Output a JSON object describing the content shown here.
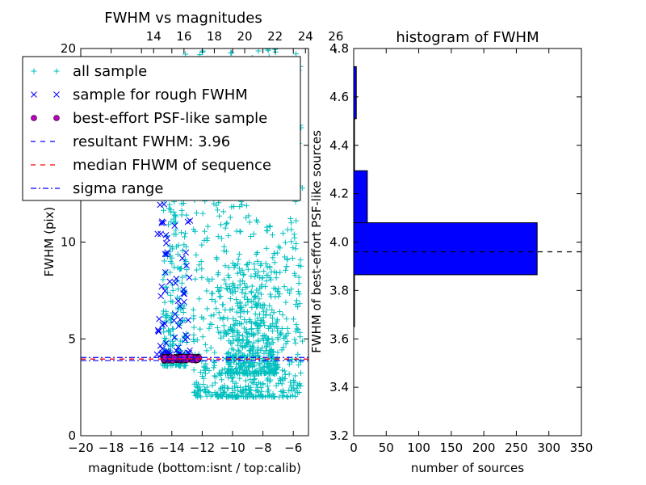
{
  "chart_data": [
    {
      "type": "scatter",
      "title": "FWHM vs magnitudes",
      "xlabel": "magnitude (bottom:isnt / top:calib)",
      "ylabel": "FWHM (pix)",
      "xlim": [
        -20,
        -5
      ],
      "ylim": [
        0,
        20
      ],
      "x_ticks": [
        "−20",
        "−18",
        "−16",
        "−14",
        "−12",
        "−10",
        "−8",
        "−6"
      ],
      "x_tick_values": [
        -20,
        -18,
        -16,
        -14,
        -12,
        -10,
        -8,
        -6
      ],
      "y_ticks": [
        "0",
        "5",
        "10",
        "15",
        "20"
      ],
      "y_tick_values": [
        0,
        5,
        10,
        15,
        20
      ],
      "top_axis": {
        "ticks": [
          "14",
          "16",
          "18",
          "20",
          "22",
          "24",
          "26"
        ],
        "tick_positions_bottom_units": [
          -15.2,
          -13.2,
          -11.2,
          -9.2,
          -7.2,
          -5.2,
          -3.2
        ]
      },
      "series": [
        {
          "name": "all sample",
          "marker": "+",
          "color": "#00bfbf",
          "clusters": [
            {
              "x": [
                -14.6,
                -13.0
              ],
              "y": [
                3.6,
                20.0
              ],
              "n": 260
            },
            {
              "x": [
                -12.6,
                -5.4
              ],
              "y": [
                2.0,
                20.0
              ],
              "n": 780
            },
            {
              "x": [
                -10.5,
                -7.0
              ],
              "y": [
                3.2,
                9.0
              ],
              "n": 380
            }
          ]
        },
        {
          "name": "sample for rough FWHM",
          "marker": "x",
          "color": "#0000ff",
          "clusters": [
            {
              "x": [
                -15.0,
                -12.8
              ],
              "y": [
                4.2,
                13.5
              ],
              "n": 70
            }
          ]
        },
        {
          "name": "best-effort PSF-like sample",
          "marker": "o",
          "color": "#bf00bf",
          "clusters": [
            {
              "x": [
                -14.6,
                -12.2
              ],
              "y": [
                3.88,
                4.08
              ],
              "n": 130
            }
          ]
        },
        {
          "name": "resultant FWHM: 3.96",
          "line": "dashed",
          "color": "#0000ff",
          "y": 3.96
        },
        {
          "name": "median FHWM of sequence",
          "line": "dashed",
          "color": "#ff0000",
          "y": 3.96
        },
        {
          "name": "sigma range",
          "line": "dashdot",
          "color": "#0000ff",
          "y": [
            3.88,
            4.04
          ]
        }
      ],
      "legend": "top-left"
    },
    {
      "type": "bar",
      "orientation": "horizontal",
      "title": "histogram of FWHM",
      "xlabel": "number of sources",
      "ylabel": "FWHM of best-effort PSF-like sources",
      "xlim": [
        0,
        350
      ],
      "ylim": [
        3.2,
        4.8
      ],
      "x_ticks": [
        "0",
        "50",
        "100",
        "150",
        "200",
        "250",
        "300",
        "350"
      ],
      "x_tick_values": [
        0,
        50,
        100,
        150,
        200,
        250,
        300,
        350
      ],
      "y_ticks": [
        "3.2",
        "3.4",
        "3.6",
        "3.8",
        "4.0",
        "4.2",
        "4.4",
        "4.6",
        "4.8"
      ],
      "y_tick_values": [
        3.2,
        3.4,
        3.6,
        3.8,
        4.0,
        4.2,
        4.4,
        4.6,
        4.8
      ],
      "bin_edges": [
        3.65,
        3.865,
        4.08,
        4.295,
        4.51,
        4.725
      ],
      "counts": [
        1,
        282,
        21,
        1,
        4
      ],
      "bar_color": "#0000ff",
      "reference_line": {
        "y": 3.96,
        "style": "dashed",
        "color": "#000000"
      }
    }
  ]
}
